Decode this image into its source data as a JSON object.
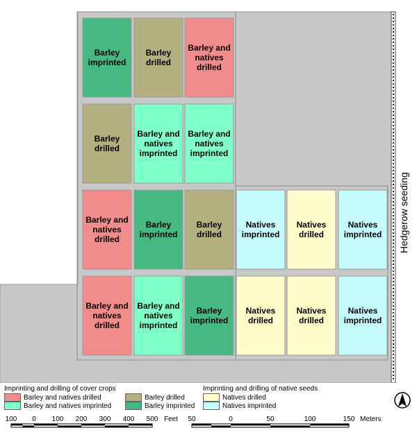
{
  "map": {
    "hedgerow_label": "Hedgerow seeding",
    "colors": {
      "background": "#c8c8c8",
      "barley_natives_drilled": "#f28c8c",
      "barley_natives_imprinted": "#7fffc9",
      "barley_drilled": "#b4af80",
      "barley_imprinted": "#46b982",
      "natives_drilled": "#fefcc8",
      "natives_imprinted": "#c5fbfb"
    },
    "plots": [
      {
        "row": 0,
        "col": 0,
        "label": "Barley imprinted",
        "lines": [
          "Barley",
          "imprinted"
        ],
        "kind": "barley_imprinted"
      },
      {
        "row": 0,
        "col": 1,
        "label": "Barley drilled",
        "lines": [
          "Barley",
          "drilled"
        ],
        "kind": "barley_drilled"
      },
      {
        "row": 0,
        "col": 2,
        "label": "Barley and natives drilled",
        "lines": [
          "Barley and",
          "natives",
          "drilled"
        ],
        "kind": "barley_natives_drilled"
      },
      {
        "row": 1,
        "col": 0,
        "label": "Barley drilled",
        "lines": [
          "Barley",
          "drilled"
        ],
        "kind": "barley_drilled"
      },
      {
        "row": 1,
        "col": 1,
        "label": "Barley and natives imprinted",
        "lines": [
          "Barley and",
          "natives",
          "imprinted"
        ],
        "kind": "barley_natives_imprinted"
      },
      {
        "row": 1,
        "col": 2,
        "label": "Barley and natives imprinted",
        "lines": [
          "Barley and",
          "natives",
          "imprinted"
        ],
        "kind": "barley_natives_imprinted"
      },
      {
        "row": 2,
        "col": 0,
        "label": "Barley and natives drilled",
        "lines": [
          "Barley and",
          "natives",
          "drilled"
        ],
        "kind": "barley_natives_drilled"
      },
      {
        "row": 2,
        "col": 1,
        "label": "Barley imprinted",
        "lines": [
          "Barley",
          "imprinted"
        ],
        "kind": "barley_imprinted"
      },
      {
        "row": 2,
        "col": 2,
        "label": "Barley drilled",
        "lines": [
          "Barley",
          "drilled"
        ],
        "kind": "barley_drilled"
      },
      {
        "row": 2,
        "col": 3,
        "label": "Natives imprinted",
        "lines": [
          "Natives",
          "imprinted"
        ],
        "kind": "natives_imprinted"
      },
      {
        "row": 2,
        "col": 4,
        "label": "Natives drilled",
        "lines": [
          "Natives",
          "drilled"
        ],
        "kind": "natives_drilled"
      },
      {
        "row": 2,
        "col": 5,
        "label": "Natives imprinted",
        "lines": [
          "Natives",
          "imprinted"
        ],
        "kind": "natives_imprinted"
      },
      {
        "row": 3,
        "col": 0,
        "label": "Barley and natives drilled",
        "lines": [
          "Barley and",
          "natives",
          "drilled"
        ],
        "kind": "barley_natives_drilled"
      },
      {
        "row": 3,
        "col": 1,
        "label": "Barley and natives imprinted",
        "lines": [
          "Barley and",
          "natives",
          "imprinted"
        ],
        "kind": "barley_natives_imprinted"
      },
      {
        "row": 3,
        "col": 2,
        "label": "Barley imprinted",
        "lines": [
          "Barley",
          "imprinted"
        ],
        "kind": "barley_imprinted"
      },
      {
        "row": 3,
        "col": 3,
        "label": "Natives drilled",
        "lines": [
          "Natives",
          "drilled"
        ],
        "kind": "natives_drilled"
      },
      {
        "row": 3,
        "col": 4,
        "label": "Natives drilled",
        "lines": [
          "Natives",
          "drilled"
        ],
        "kind": "natives_drilled"
      },
      {
        "row": 3,
        "col": 5,
        "label": "Natives imprinted",
        "lines": [
          "Natives",
          "imprinted"
        ],
        "kind": "natives_imprinted"
      }
    ]
  },
  "legend": {
    "cover_title": "Imprinting and drilling of cover crops",
    "cover_items": [
      {
        "label": "Barley and natives drilled",
        "kind": "barley_natives_drilled"
      },
      {
        "label": "Barley and natives imprinted",
        "kind": "barley_natives_imprinted"
      },
      {
        "label": "Barley drilled",
        "kind": "barley_drilled"
      },
      {
        "label": "Barley imprinted",
        "kind": "barley_imprinted"
      }
    ],
    "native_title": "Imprinting and drilling of native seeds",
    "native_items": [
      {
        "label": "Natives drilled",
        "kind": "natives_drilled"
      },
      {
        "label": "Natives imprinted",
        "kind": "natives_imprinted"
      }
    ]
  },
  "north_arrow": {
    "label": "N"
  },
  "scale_feet": {
    "ticks": [
      "100",
      "0",
      "100",
      "200",
      "300",
      "400",
      "500"
    ],
    "unit": "Feet"
  },
  "scale_meters": {
    "ticks": [
      "50",
      "0",
      "50",
      "100",
      "150"
    ],
    "unit": "Meters"
  }
}
